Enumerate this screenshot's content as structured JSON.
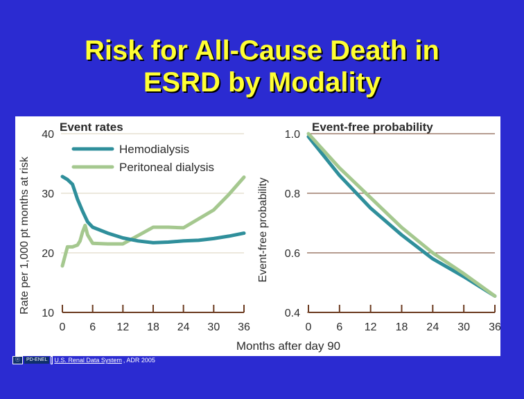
{
  "slide": {
    "title_line1": "Risk for All-Cause Death in",
    "title_line2": "ESRD by Modality"
  },
  "footer": {
    "badge_left": "ⓔ",
    "badge_right": "PD-ENEL",
    "source_link": "U.S. Renal Data System",
    "source_rest": ", ADR 2005"
  },
  "colors": {
    "background": "#2b2bd1",
    "title": "#ffff33",
    "hemodialysis": "#2f8f9b",
    "peritoneal": "#a5c88f"
  },
  "chart_data": [
    {
      "type": "line",
      "title": "Event rates",
      "xlabel": "Months after day 90",
      "ylabel": "Rate per 1,000 pt months at risk",
      "xlim": [
        0,
        36
      ],
      "ylim": [
        10,
        40
      ],
      "xticks": [
        "0",
        "6",
        "12",
        "18",
        "24",
        "30",
        "36"
      ],
      "yticks": [
        "10",
        "20",
        "30",
        "40"
      ],
      "legend": "top-left",
      "grid": true,
      "series": [
        {
          "name": "Hemodialysis",
          "x": [
            0,
            1,
            2,
            3,
            4,
            5,
            6,
            9,
            12,
            15,
            18,
            21,
            24,
            27,
            30,
            33,
            36
          ],
          "y": [
            32.8,
            32.3,
            31.5,
            29.0,
            27.0,
            25.2,
            24.3,
            23.3,
            22.5,
            22.0,
            21.7,
            21.8,
            22.0,
            22.1,
            22.4,
            22.8,
            23.3
          ]
        },
        {
          "name": "Peritoneal dialysis",
          "x": [
            0,
            1,
            2,
            3,
            3.5,
            4,
            4.5,
            5,
            6,
            9,
            12,
            15,
            18,
            21,
            24,
            27,
            30,
            33,
            36
          ],
          "y": [
            17.8,
            21.0,
            21.0,
            21.3,
            22.0,
            23.5,
            24.6,
            23.0,
            21.6,
            21.5,
            21.5,
            22.9,
            24.3,
            24.3,
            24.2,
            25.7,
            27.2,
            29.8,
            32.7
          ]
        }
      ]
    },
    {
      "type": "line",
      "title": "Event-free probability",
      "xlabel": "Months after day 90",
      "ylabel": "Event-free probability",
      "xlim": [
        0,
        36
      ],
      "ylim": [
        0.4,
        1.0
      ],
      "xticks": [
        "0",
        "6",
        "12",
        "18",
        "24",
        "30",
        "36"
      ],
      "yticks": [
        "0.4",
        "0.6",
        "0.8",
        "1.0"
      ],
      "grid": true,
      "series": [
        {
          "name": "Hemodialysis",
          "x": [
            0,
            6,
            12,
            18,
            24,
            30,
            36
          ],
          "y": [
            0.99,
            0.86,
            0.75,
            0.66,
            0.58,
            0.52,
            0.455
          ]
        },
        {
          "name": "Peritoneal dialysis",
          "x": [
            0,
            6,
            12,
            18,
            24,
            30,
            36
          ],
          "y": [
            1.0,
            0.885,
            0.785,
            0.685,
            0.6,
            0.53,
            0.455
          ]
        }
      ]
    }
  ]
}
